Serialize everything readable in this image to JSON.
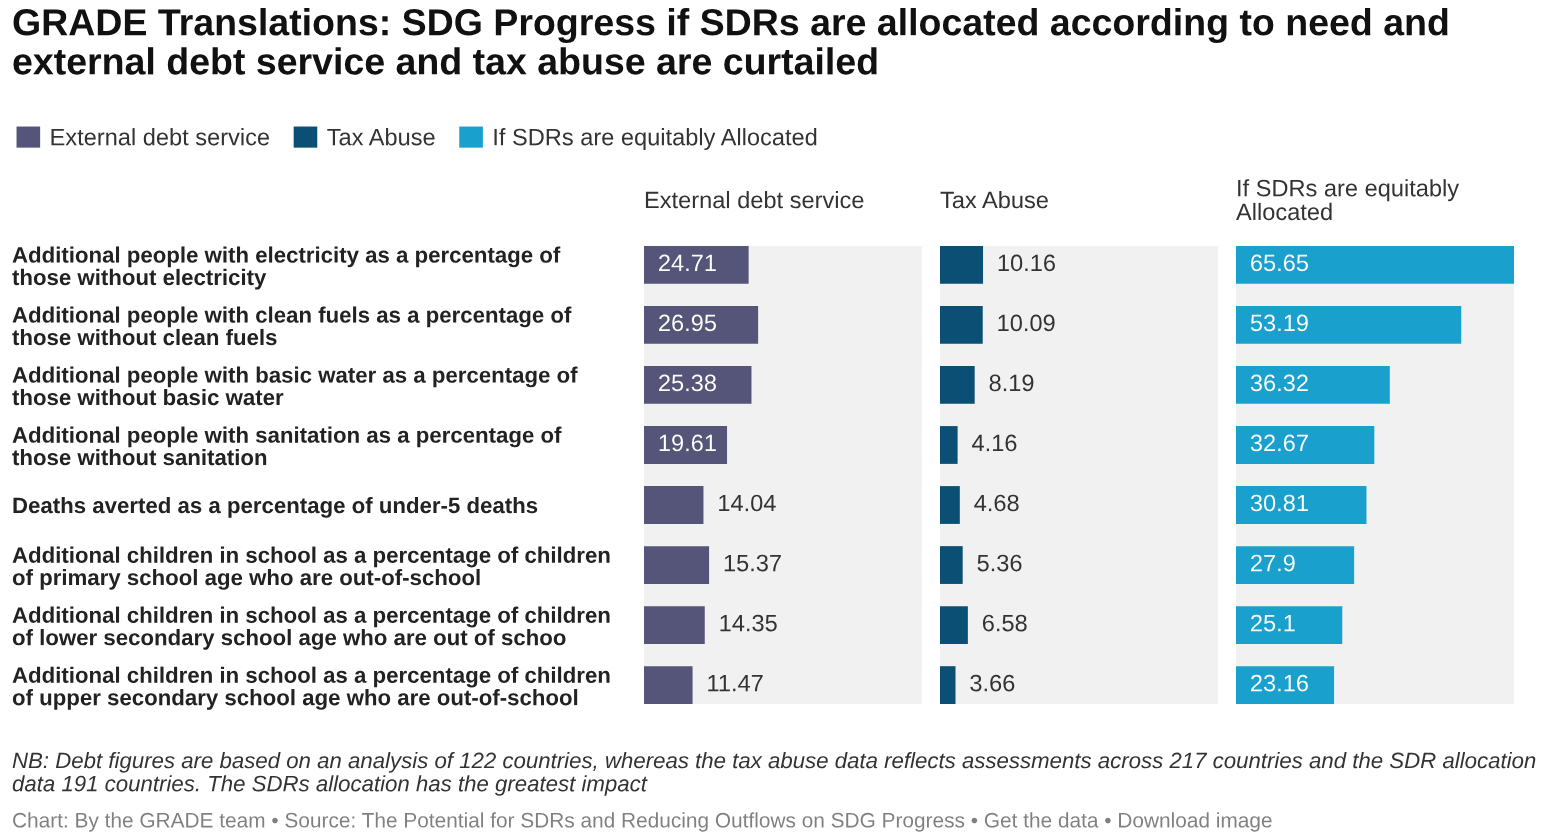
{
  "chart_data": [
    {
      "type": "bar",
      "orientation": "horizontal",
      "title": "GRADE Translations: SDG Progress if SDRs are allocated according to need and external debt service and tax abuse are curtailed",
      "categories": [
        "Additional people with electricity as a percentage of those without electricity",
        "Additional people with clean fuels as a percentage of those without clean fuels",
        "Additional people with basic water as a percentage of those without basic water",
        "Additional people with sanitation as a percentage of those without sanitation",
        "Deaths averted as a percentage of under-5 deaths",
        "Additional children in school as a percentage of children of primary school age who are out-of-school",
        "Additional children in school as a percentage of children of lower secondary school age who are out of schoo",
        "Additional children in school as a percentage of children of upper secondary school age who are out-of-school"
      ],
      "series": [
        {
          "name": "External debt service",
          "color": "#55557a",
          "values": [
            24.71,
            26.95,
            25.38,
            19.61,
            14.04,
            15.37,
            14.35,
            11.47
          ]
        }
      ],
      "xlim": [
        0,
        65.65
      ],
      "data_labels": true,
      "legend": "top left",
      "tick_labels": "y",
      "annotations": [
        "NB: Debt figures are based on an analysis of 122 countries, whereas the tax abuse data reflects assessments across 217 countries and the SDR allocation data 191 countries. The SDRs allocation has the greatest impact",
        "Chart: By the GRADE team • Source: The Potential for SDRs and Reducing Outflows on SDG Progress • Get the data • Download image"
      ]
    },
    {
      "type": "bar",
      "orientation": "horizontal",
      "series": [
        {
          "name": "Tax Abuse",
          "color": "#0c4f74",
          "values": [
            10.16,
            10.09,
            8.19,
            4.16,
            4.68,
            5.36,
            6.58,
            3.66
          ]
        }
      ],
      "xlim": [
        0,
        65.65
      ],
      "data_labels": true,
      "legend": "top left"
    },
    {
      "type": "bar",
      "orientation": "horizontal",
      "series": [
        {
          "name": "If SDRs are equitably Allocated",
          "color": "#1aa0cc",
          "values": [
            65.65,
            53.19,
            36.32,
            32.67,
            30.81,
            27.9,
            25.1,
            23.16
          ]
        }
      ],
      "xlim": [
        0,
        65.65
      ],
      "data_labels": true,
      "legend": "top left"
    }
  ]
}
